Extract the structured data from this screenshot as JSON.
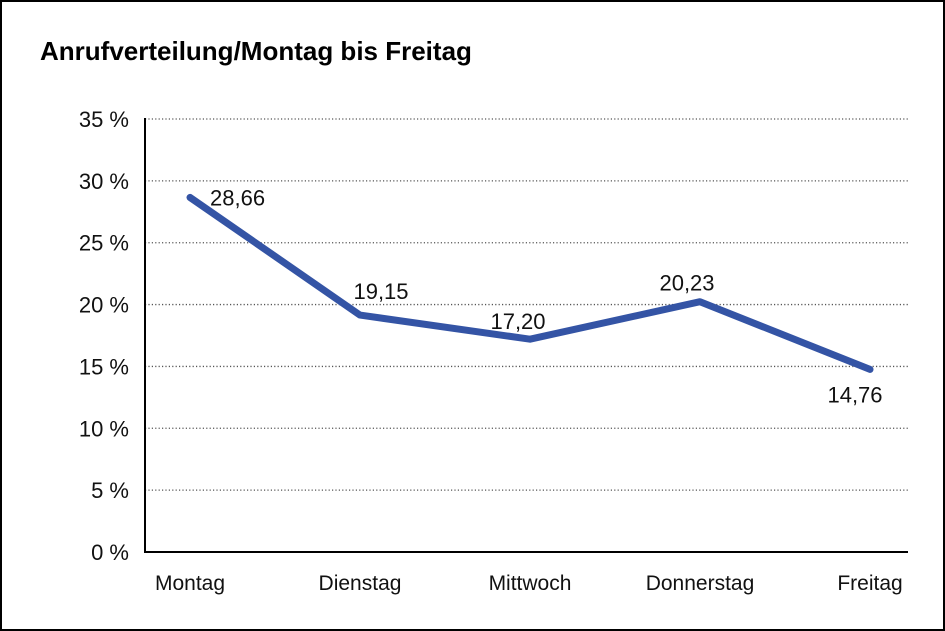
{
  "page": {
    "title": "Anrufverteilung/Montag bis Freitag"
  },
  "chart_data": {
    "type": "line",
    "title": "Anrufverteilung/Montag bis Freitag",
    "categories": [
      "Montag",
      "Dienstag",
      "Mittwoch",
      "Donnerstag",
      "Freitag"
    ],
    "values": [
      28.66,
      19.15,
      17.2,
      20.23,
      14.76
    ],
    "value_labels": [
      "28,66",
      "19,15",
      "17,20",
      "20,23",
      "14,76"
    ],
    "xlabel": "",
    "ylabel": "",
    "ylim": [
      0,
      35
    ],
    "yticks": [
      0,
      5,
      10,
      15,
      20,
      25,
      30,
      35
    ],
    "ytick_labels": [
      "0 %",
      "5 %",
      "10 %",
      "15 %",
      "20 %",
      "25 %",
      "30 %",
      "35 %"
    ],
    "grid": "horizontal-dotted",
    "legend_position": "none",
    "line_color": "#3454A5",
    "gridline_color": "#555555",
    "axis_color": "#000000",
    "text_color": "#111111"
  }
}
